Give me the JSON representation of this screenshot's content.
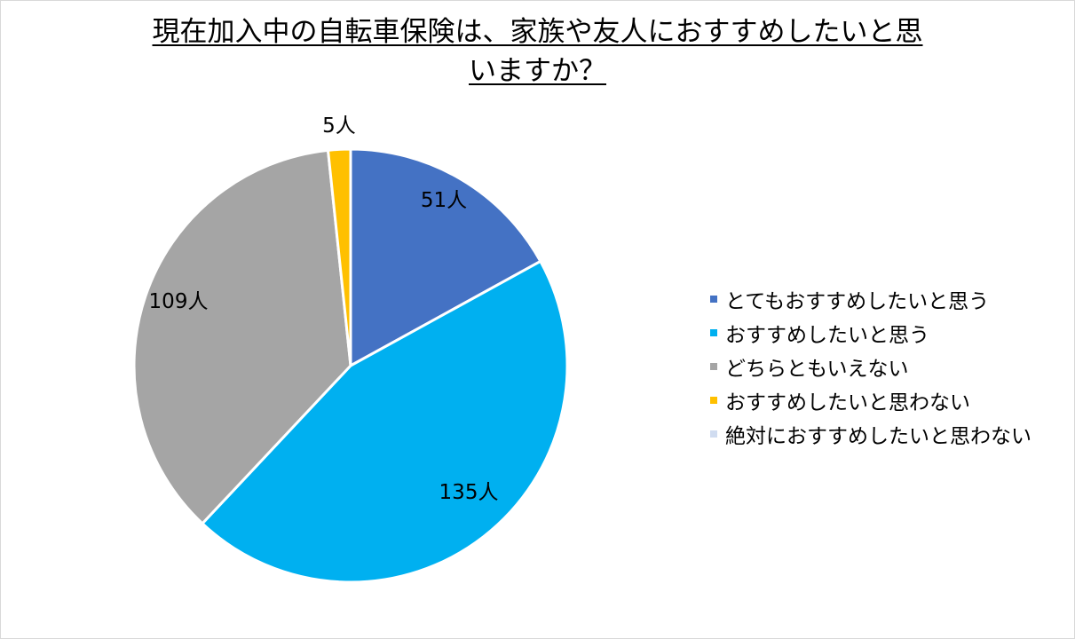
{
  "title_line1": "現在加入中の自転車保険は、家族や友人におすすめしたいと思",
  "title_line2": "いますか？",
  "chart_data": {
    "type": "pie",
    "title": "現在加入中の自転車保険は、家族や友人におすすめしたいと思いますか？",
    "legend_position": "right",
    "unit": "人",
    "slices": [
      {
        "label": "とてもおすすめしたいと思う",
        "value": 51,
        "data_label": "51人",
        "color": "#4472c4"
      },
      {
        "label": "おすすめしたいと思う",
        "value": 135,
        "data_label": "135人",
        "color": "#00b0f0"
      },
      {
        "label": "どちらともいえない",
        "value": 109,
        "data_label": "109人",
        "color": "#a5a5a5"
      },
      {
        "label": "おすすめしたいと思わない",
        "value": 5,
        "data_label": "5人",
        "color": "#ffc000"
      },
      {
        "label": "絶対におすすめしたいと思わない",
        "value": 0,
        "data_label": "",
        "color": "#4472c4",
        "pattern": "dotted"
      }
    ]
  }
}
